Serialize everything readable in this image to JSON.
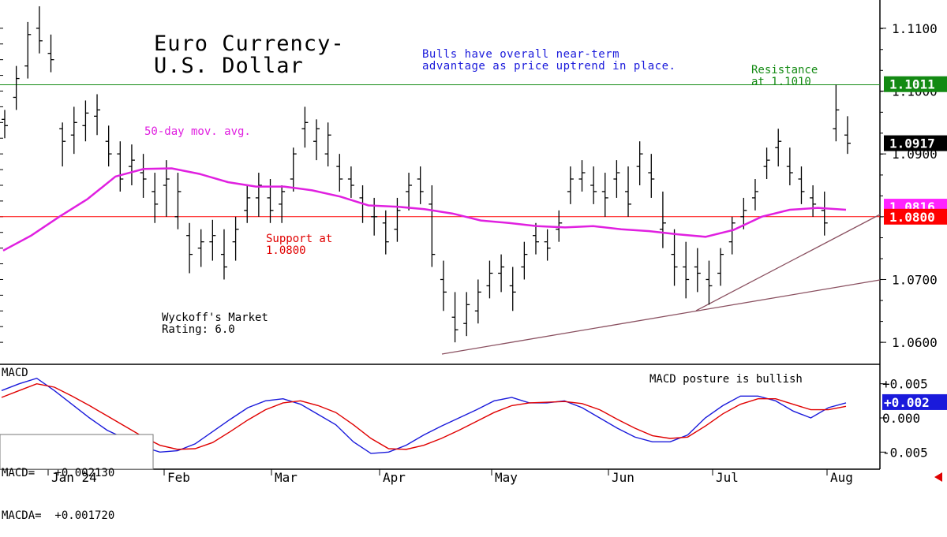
{
  "chart_data": [
    {
      "type": "ohlc",
      "title": "Euro Currency-\nU.S. Dollar",
      "ylim": [
        1.0565,
        1.1145
      ],
      "yticks": [
        "1.0600",
        "1.0700",
        "1.0800",
        "1.0900",
        "1.1000",
        "1.1100"
      ],
      "xticks": [
        "Jan 24",
        "Feb",
        "Mar",
        "Apr",
        "May",
        "Jun",
        "Jul",
        "Aug"
      ],
      "price_tags": [
        {
          "label": "1.1011",
          "value": 1.1011,
          "color": "#138a13"
        },
        {
          "label": "1.0917",
          "value": 1.0917,
          "color": "#000000"
        },
        {
          "label": "1.0816",
          "value": 1.0816,
          "color": "#ff22ff"
        },
        {
          "label": "1.0800",
          "value": 1.08,
          "color": "#ff0000"
        }
      ],
      "horizontal_lines": [
        {
          "value": 1.101,
          "color": "#138a13"
        },
        {
          "value": 1.08,
          "color": "#ff0000"
        }
      ],
      "annotations": {
        "bulls": "Bulls have overall near-term\nadvantage as price uptrend in place.",
        "resistance": "Resistance\nat 1.1010",
        "moving_average": "50-day mov. avg.",
        "support": "Support at\n1.0800",
        "rating": "Wyckoff's Market\nRating: 6.0"
      },
      "series": [
        {
          "name": "50-day mov. avg.",
          "color": "#e020e0",
          "values": [
            1.0746,
            1.077,
            1.08,
            1.0828,
            1.0864,
            1.0876,
            1.0877,
            1.0868,
            1.0855,
            1.0848,
            1.0848,
            1.0842,
            1.0832,
            1.0818,
            1.0816,
            1.0812,
            1.0805,
            1.0794,
            1.079,
            1.0785,
            1.0783,
            1.0785,
            1.078,
            1.0777,
            1.0772,
            1.0768,
            1.0779,
            1.08,
            1.0811,
            1.0814,
            1.0811
          ]
        }
      ],
      "ohlc_bars": [
        [
          1.0955,
          1.097,
          1.0925,
          1.0945
        ],
        [
          1.099,
          1.104,
          1.097,
          1.102
        ],
        [
          1.104,
          1.111,
          1.102,
          1.109
        ],
        [
          1.11,
          1.1135,
          1.106,
          1.108
        ],
        [
          1.106,
          1.109,
          1.103,
          1.105
        ],
        [
          1.094,
          1.095,
          1.088,
          1.092
        ],
        [
          1.093,
          1.0975,
          1.09,
          1.095
        ],
        [
          1.0945,
          1.0985,
          1.092,
          1.0965
        ],
        [
          1.096,
          1.0995,
          1.093,
          1.097
        ],
        [
          1.092,
          1.0945,
          1.088,
          1.09
        ],
        [
          1.09,
          1.092,
          1.084,
          1.086
        ],
        [
          1.088,
          1.0915,
          1.085,
          1.089
        ],
        [
          1.087,
          1.09,
          1.083,
          1.086
        ],
        [
          1.084,
          1.087,
          1.079,
          1.082
        ],
        [
          1.085,
          1.089,
          1.08,
          1.086
        ],
        [
          1.08,
          1.087,
          1.078,
          1.084
        ],
        [
          1.077,
          1.079,
          1.071,
          1.074
        ],
        [
          1.075,
          1.078,
          1.072,
          1.076
        ],
        [
          1.076,
          1.0795,
          1.073,
          1.077
        ],
        [
          1.074,
          1.078,
          1.07,
          1.072
        ],
        [
          1.076,
          1.08,
          1.073,
          1.078
        ],
        [
          1.081,
          1.085,
          1.079,
          1.083
        ],
        [
          1.083,
          1.087,
          1.08,
          1.085
        ],
        [
          1.083,
          1.086,
          1.079,
          1.081
        ],
        [
          1.082,
          1.085,
          1.079,
          1.084
        ],
        [
          1.086,
          1.091,
          1.084,
          1.09
        ],
        [
          1.094,
          1.0975,
          1.091,
          1.095
        ],
        [
          1.092,
          1.0955,
          1.089,
          1.094
        ],
        [
          1.09,
          1.095,
          1.088,
          1.093
        ],
        [
          1.088,
          1.09,
          1.084,
          1.086
        ],
        [
          1.086,
          1.088,
          1.083,
          1.085
        ],
        [
          1.083,
          1.085,
          1.079,
          1.082
        ],
        [
          1.08,
          1.083,
          1.077,
          1.08
        ],
        [
          1.079,
          1.081,
          1.074,
          1.076
        ],
        [
          1.078,
          1.083,
          1.076,
          1.081
        ],
        [
          1.084,
          1.087,
          1.081,
          1.085
        ],
        [
          1.086,
          1.088,
          1.082,
          1.084
        ],
        [
          1.082,
          1.085,
          1.072,
          1.074
        ],
        [
          1.07,
          1.073,
          1.065,
          1.068
        ],
        [
          1.064,
          1.068,
          1.06,
          1.062
        ],
        [
          1.063,
          1.068,
          1.061,
          1.066
        ],
        [
          1.065,
          1.07,
          1.063,
          1.068
        ],
        [
          1.069,
          1.073,
          1.067,
          1.071
        ],
        [
          1.071,
          1.074,
          1.068,
          1.072
        ],
        [
          1.069,
          1.072,
          1.065,
          1.068
        ],
        [
          1.072,
          1.076,
          1.07,
          1.074
        ],
        [
          1.077,
          1.079,
          1.074,
          1.076
        ],
        [
          1.076,
          1.078,
          1.073,
          1.075
        ],
        [
          1.078,
          1.081,
          1.076,
          1.079
        ],
        [
          1.084,
          1.088,
          1.082,
          1.086
        ],
        [
          1.086,
          1.089,
          1.084,
          1.087
        ],
        [
          1.085,
          1.088,
          1.082,
          1.084
        ],
        [
          1.084,
          1.087,
          1.08,
          1.083
        ],
        [
          1.086,
          1.089,
          1.083,
          1.087
        ],
        [
          1.084,
          1.088,
          1.08,
          1.082
        ],
        [
          1.088,
          1.092,
          1.085,
          1.09
        ],
        [
          1.087,
          1.09,
          1.083,
          1.086
        ],
        [
          1.078,
          1.084,
          1.075,
          1.079
        ],
        [
          1.074,
          1.078,
          1.069,
          1.072
        ],
        [
          1.072,
          1.076,
          1.067,
          1.07
        ],
        [
          1.072,
          1.075,
          1.068,
          1.071
        ],
        [
          1.07,
          1.073,
          1.066,
          1.069
        ],
        [
          1.071,
          1.075,
          1.069,
          1.074
        ],
        [
          1.076,
          1.08,
          1.074,
          1.079
        ],
        [
          1.08,
          1.083,
          1.078,
          1.081
        ],
        [
          1.083,
          1.086,
          1.081,
          1.084
        ],
        [
          1.088,
          1.091,
          1.086,
          1.089
        ],
        [
          1.091,
          1.094,
          1.088,
          1.092
        ],
        [
          1.088,
          1.091,
          1.085,
          1.087
        ],
        [
          1.086,
          1.088,
          1.082,
          1.084
        ],
        [
          1.083,
          1.085,
          1.08,
          1.082
        ],
        [
          1.081,
          1.084,
          1.077,
          1.079
        ],
        [
          1.094,
          1.101,
          1.092,
          1.097
        ],
        [
          1.093,
          1.096,
          1.09,
          1.0917
        ]
      ]
    },
    {
      "type": "line",
      "title": "MACD",
      "ylim": [
        -0.0075,
        0.0075
      ],
      "yticks": [
        "+0.005",
        "0.000",
        "-0.005"
      ],
      "annotation": "MACD posture is bullish",
      "readout": [
        "MACD=   +0.002130",
        "MACDA=  +0.001720"
      ],
      "tag": "+0.002",
      "series": [
        {
          "name": "MACD",
          "color": "#1a1adb",
          "values": [
            0.004,
            0.005,
            0.0058,
            0.004,
            0.002,
            0.0,
            -0.0018,
            -0.003,
            -0.0042,
            -0.005,
            -0.0048,
            -0.0038,
            -0.002,
            -0.0002,
            0.0015,
            0.0025,
            0.0028,
            0.002,
            0.0005,
            -0.001,
            -0.0035,
            -0.0052,
            -0.005,
            -0.004,
            -0.0025,
            -0.0012,
            0.0,
            0.0012,
            0.0025,
            0.003,
            0.0022,
            0.0022,
            0.0025,
            0.0015,
            0.0,
            -0.0015,
            -0.0028,
            -0.0035,
            -0.0035,
            -0.0025,
            0.0,
            0.0018,
            0.0032,
            0.0032,
            0.0025,
            0.001,
            0.0,
            0.0015,
            0.0022
          ]
        },
        {
          "name": "MACDA",
          "color": "#e00000",
          "values": [
            0.003,
            0.004,
            0.005,
            0.0045,
            0.0032,
            0.0018,
            0.0003,
            -0.0012,
            -0.0027,
            -0.004,
            -0.0046,
            -0.0045,
            -0.0036,
            -0.002,
            -0.0003,
            0.0012,
            0.0022,
            0.0025,
            0.0018,
            0.0008,
            -0.001,
            -0.003,
            -0.0045,
            -0.0046,
            -0.004,
            -0.003,
            -0.0018,
            -0.0005,
            0.0008,
            0.0018,
            0.0022,
            0.0023,
            0.0024,
            0.0021,
            0.0012,
            -0.0002,
            -0.0015,
            -0.0026,
            -0.003,
            -0.0028,
            -0.0012,
            0.0006,
            0.002,
            0.0028,
            0.0028,
            0.002,
            0.0012,
            0.0012,
            0.0017
          ]
        }
      ]
    }
  ]
}
